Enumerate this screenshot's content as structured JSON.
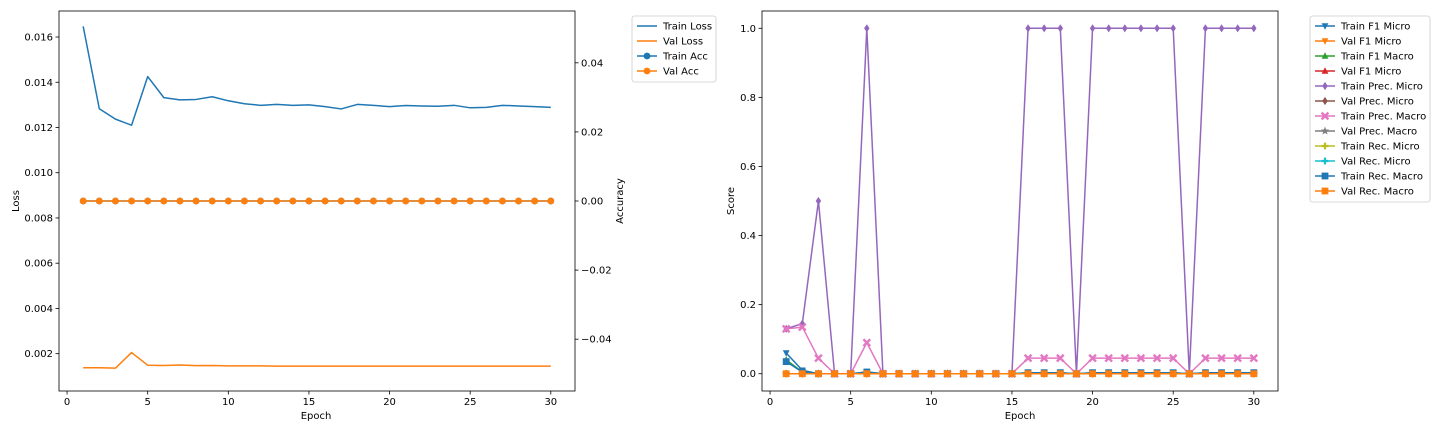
{
  "chart_data": [
    {
      "type": "line",
      "xlabel": "Epoch",
      "ylabel": "Loss",
      "y2label": "Accuracy",
      "xlim": [
        -0.5,
        31.5
      ],
      "ylim": [
        0.00035,
        0.01715
      ],
      "y2lim": [
        -0.055,
        0.055
      ],
      "xticks": [
        0,
        5,
        10,
        15,
        20,
        25,
        30
      ],
      "yticks": [
        0.002,
        0.004,
        0.006,
        0.008,
        0.01,
        0.012,
        0.014,
        0.016
      ],
      "ytick_labels": [
        "0.002",
        "0.004",
        "0.006",
        "0.008",
        "0.010",
        "0.012",
        "0.014",
        "0.016"
      ],
      "y2ticks": [
        -0.04,
        -0.02,
        0.0,
        0.02,
        0.04
      ],
      "y2tick_labels": [
        "−0.04",
        "−0.02",
        "0.00",
        "0.02",
        "0.04"
      ],
      "legend_position": "outside-top-right",
      "x": [
        1,
        2,
        3,
        4,
        5,
        6,
        7,
        8,
        9,
        10,
        11,
        12,
        13,
        14,
        15,
        16,
        17,
        18,
        19,
        20,
        21,
        22,
        23,
        24,
        25,
        26,
        27,
        28,
        29,
        30
      ],
      "series": [
        {
          "name": "Train Loss",
          "axis": "left",
          "color": "#1f77b4",
          "marker": "none",
          "values": [
            0.01647,
            0.01283,
            0.01237,
            0.0121,
            0.01425,
            0.01332,
            0.01322,
            0.01324,
            0.01336,
            0.01318,
            0.01305,
            0.01298,
            0.01302,
            0.01298,
            0.013,
            0.01292,
            0.01282,
            0.01302,
            0.01298,
            0.01292,
            0.01297,
            0.01295,
            0.01294,
            0.01298,
            0.01287,
            0.01289,
            0.01298,
            0.01295,
            0.01292,
            0.01289
          ]
        },
        {
          "name": "Val Loss",
          "axis": "left",
          "color": "#ff7f0e",
          "marker": "none",
          "values": [
            0.00138,
            0.00138,
            0.00136,
            0.00205,
            0.00149,
            0.00148,
            0.0015,
            0.00147,
            0.00148,
            0.00146,
            0.00146,
            0.00146,
            0.00145,
            0.00145,
            0.00145,
            0.00145,
            0.00145,
            0.00145,
            0.00145,
            0.00145,
            0.00145,
            0.00145,
            0.00145,
            0.00145,
            0.00145,
            0.00145,
            0.00145,
            0.00145,
            0.00145,
            0.00145
          ]
        },
        {
          "name": "Train Acc",
          "axis": "right",
          "color": "#1f77b4",
          "marker": "circle",
          "values": [
            0,
            0,
            0,
            0,
            0,
            0,
            0,
            0,
            0,
            0,
            0,
            0,
            0,
            0,
            0,
            0,
            0,
            0,
            0,
            0,
            0,
            0,
            0,
            0,
            0,
            0,
            0,
            0,
            0,
            0
          ]
        },
        {
          "name": "Val Acc",
          "axis": "right",
          "color": "#ff7f0e",
          "marker": "circle",
          "values": [
            0,
            0,
            0,
            0,
            0,
            0,
            0,
            0,
            0,
            0,
            0,
            0,
            0,
            0,
            0,
            0,
            0,
            0,
            0,
            0,
            0,
            0,
            0,
            0,
            0,
            0,
            0,
            0,
            0,
            0
          ]
        }
      ]
    },
    {
      "type": "line",
      "xlabel": "Epoch",
      "ylabel": "Score",
      "xlim": [
        -0.5,
        31.5
      ],
      "ylim": [
        -0.05,
        1.05
      ],
      "xticks": [
        0,
        5,
        10,
        15,
        20,
        25,
        30
      ],
      "yticks": [
        0.0,
        0.2,
        0.4,
        0.6,
        0.8,
        1.0
      ],
      "ytick_labels": [
        "0.0",
        "0.2",
        "0.4",
        "0.6",
        "0.8",
        "1.0"
      ],
      "legend_position": "outside-top-right",
      "x": [
        1,
        2,
        3,
        4,
        5,
        6,
        7,
        8,
        9,
        10,
        11,
        12,
        13,
        14,
        15,
        16,
        17,
        18,
        19,
        20,
        21,
        22,
        23,
        24,
        25,
        26,
        27,
        28,
        29,
        30
      ],
      "series": [
        {
          "name": "Train F1 Micro",
          "color": "#1f77b4",
          "marker": "tri-down",
          "values": [
            0.06,
            0.01,
            0,
            0,
            0,
            0,
            0,
            0,
            0,
            0,
            0,
            0,
            0,
            0,
            0,
            0,
            0,
            0,
            0,
            0,
            0,
            0,
            0,
            0,
            0,
            0,
            0,
            0,
            0,
            0
          ]
        },
        {
          "name": "Val F1 Micro",
          "color": "#ff7f0e",
          "marker": "tri-down",
          "values": [
            0,
            0,
            0,
            0,
            0,
            0,
            0,
            0,
            0,
            0,
            0,
            0,
            0,
            0,
            0,
            0,
            0,
            0,
            0,
            0,
            0,
            0,
            0,
            0,
            0,
            0,
            0,
            0,
            0,
            0
          ]
        },
        {
          "name": "Train F1 Macro",
          "color": "#2ca02c",
          "marker": "tri-up",
          "values": [
            0.04,
            0.005,
            0,
            0,
            0,
            0.005,
            0,
            0,
            0,
            0,
            0,
            0,
            0,
            0,
            0,
            0.003,
            0.003,
            0.003,
            0,
            0.003,
            0.003,
            0.003,
            0.003,
            0.003,
            0.003,
            0,
            0.003,
            0.003,
            0.003,
            0.003
          ]
        },
        {
          "name": "Val F1 Micro",
          "color": "#d62728",
          "marker": "tri-up",
          "values": [
            0,
            0,
            0,
            0,
            0,
            0,
            0,
            0,
            0,
            0,
            0,
            0,
            0,
            0,
            0,
            0,
            0,
            0,
            0,
            0,
            0,
            0,
            0,
            0,
            0,
            0,
            0,
            0,
            0,
            0
          ]
        },
        {
          "name": "Train Prec. Micro",
          "color": "#9467bd",
          "marker": "diamond",
          "values": [
            0.13,
            0.145,
            0.5,
            0,
            0,
            1,
            0,
            0,
            0,
            0,
            0,
            0,
            0,
            0,
            0,
            1,
            1,
            1,
            0,
            1,
            1,
            1,
            1,
            1,
            1,
            0,
            1,
            1,
            1,
            1
          ]
        },
        {
          "name": "Val Prec. Micro",
          "color": "#8c564b",
          "marker": "diamond",
          "values": [
            0,
            0,
            0,
            0,
            0,
            0,
            0,
            0,
            0,
            0,
            0,
            0,
            0,
            0,
            0,
            0,
            0,
            0,
            0,
            0,
            0,
            0,
            0,
            0,
            0,
            0,
            0,
            0,
            0,
            0
          ]
        },
        {
          "name": "Train Prec. Macro",
          "color": "#e377c2",
          "marker": "x",
          "values": [
            0.13,
            0.135,
            0.045,
            0,
            0,
            0.09,
            0,
            0,
            0,
            0,
            0,
            0,
            0,
            0,
            0,
            0.045,
            0.045,
            0.045,
            0,
            0.045,
            0.045,
            0.045,
            0.045,
            0.045,
            0.045,
            0,
            0.045,
            0.045,
            0.045,
            0.045
          ]
        },
        {
          "name": "Val Prec. Macro",
          "color": "#7f7f7f",
          "marker": "star",
          "values": [
            0,
            0,
            0,
            0,
            0,
            0,
            0,
            0,
            0,
            0,
            0,
            0,
            0,
            0,
            0,
            0,
            0,
            0,
            0,
            0,
            0,
            0,
            0,
            0,
            0,
            0,
            0,
            0,
            0,
            0
          ]
        },
        {
          "name": "Train Rec. Micro",
          "color": "#bcbd22",
          "marker": "plus",
          "values": [
            0,
            0,
            0,
            0,
            0,
            0,
            0,
            0,
            0,
            0,
            0,
            0,
            0,
            0,
            0,
            0,
            0,
            0,
            0,
            0,
            0,
            0,
            0,
            0,
            0,
            0,
            0,
            0,
            0,
            0
          ]
        },
        {
          "name": "Val Rec. Micro",
          "color": "#17becf",
          "marker": "plus",
          "values": [
            0,
            0,
            0,
            0,
            0,
            0,
            0,
            0,
            0,
            0,
            0,
            0,
            0,
            0,
            0,
            0,
            0,
            0,
            0,
            0,
            0,
            0,
            0,
            0,
            0,
            0,
            0,
            0,
            0,
            0
          ]
        },
        {
          "name": "Train Rec. Macro",
          "color": "#1f77b4",
          "marker": "square",
          "values": [
            0.035,
            0.005,
            0,
            0,
            0,
            0.005,
            0,
            0,
            0,
            0,
            0,
            0,
            0,
            0,
            0,
            0.003,
            0.003,
            0.003,
            0,
            0.003,
            0.003,
            0.003,
            0.003,
            0.003,
            0.003,
            0,
            0.003,
            0.003,
            0.003,
            0.003
          ]
        },
        {
          "name": "Val Rec. Macro",
          "color": "#ff7f0e",
          "marker": "square",
          "values": [
            0,
            0,
            0,
            0,
            0,
            0,
            0,
            0,
            0,
            0,
            0,
            0,
            0,
            0,
            0,
            0,
            0,
            0,
            0,
            0,
            0,
            0,
            0,
            0,
            0,
            0,
            0,
            0,
            0,
            0
          ]
        }
      ]
    }
  ]
}
